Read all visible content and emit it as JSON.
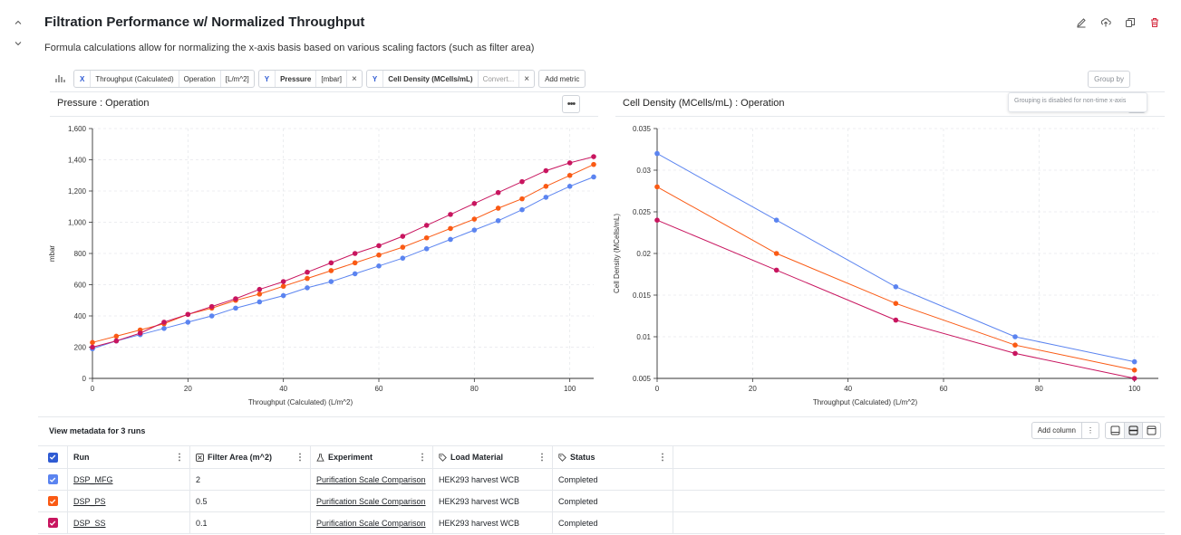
{
  "header": {
    "title": "Filtration Performance w/ Normalized Throughput",
    "subtitle": "Formula calculations allow for normalizing the x-axis basis based on various scaling factors (such as filter area)"
  },
  "metrics": {
    "x": {
      "axis": "X",
      "name": "Throughput (Calculated)",
      "scope": "Operation",
      "unit": "[L/m^2]"
    },
    "y1": {
      "axis": "Y",
      "name": "Pressure",
      "unit": "[mbar]"
    },
    "y2": {
      "axis": "Y",
      "name": "Cell Density (MCells/mL)",
      "unit_placeholder": "Convert..."
    },
    "add_label": "Add metric",
    "close_glyph": "×",
    "group_by_label": "Group by",
    "group_tooltip": "Grouping is disabled for non-time x-axis"
  },
  "colors": {
    "MFG": "#5b84f0",
    "PS": "#fa5a14",
    "SS": "#c8155f"
  },
  "charts": {
    "left": {
      "title": "Pressure : Operation"
    },
    "right": {
      "title": "Cell Density (MCells/mL) : Operation"
    }
  },
  "chart_data": [
    {
      "type": "line",
      "title": "Pressure : Operation",
      "xlabel": "Throughput (Calculated) (L/m^2)",
      "ylabel": "mbar",
      "xlim": [
        0,
        105
      ],
      "ylim": [
        0,
        1600
      ],
      "xticks": [
        0,
        20,
        40,
        60,
        80,
        100
      ],
      "yticks": [
        0,
        200,
        400,
        600,
        800,
        1000,
        1200,
        1400,
        1600
      ],
      "ytick_labels": [
        "0",
        "200",
        "400",
        "600",
        "800",
        "1,000",
        "1,200",
        "1,400",
        "1,600"
      ],
      "grid": true,
      "x": [
        0,
        5,
        10,
        15,
        20,
        25,
        30,
        35,
        40,
        45,
        50,
        55,
        60,
        65,
        70,
        75,
        80,
        85,
        90,
        95,
        100,
        105
      ],
      "series": [
        {
          "name": "DSP_MFG",
          "color": "#5b84f0",
          "values": [
            190,
            240,
            280,
            320,
            360,
            400,
            450,
            490,
            530,
            580,
            620,
            670,
            720,
            770,
            830,
            890,
            950,
            1010,
            1080,
            1160,
            1230,
            1290
          ]
        },
        {
          "name": "DSP_PS",
          "color": "#fa5a14",
          "values": [
            230,
            270,
            310,
            350,
            410,
            450,
            500,
            540,
            590,
            640,
            690,
            740,
            790,
            840,
            900,
            960,
            1020,
            1090,
            1150,
            1230,
            1300,
            1370
          ]
        },
        {
          "name": "DSP_SS",
          "color": "#c8155f",
          "values": [
            200,
            240,
            290,
            360,
            410,
            460,
            510,
            570,
            620,
            680,
            740,
            800,
            850,
            910,
            980,
            1050,
            1120,
            1190,
            1260,
            1330,
            1380,
            1420
          ]
        }
      ]
    },
    {
      "type": "line",
      "title": "Cell Density (MCells/mL) : Operation",
      "xlabel": "Throughput (Calculated) (L/m^2)",
      "ylabel": "Cell Density (MCells/mL)",
      "xlim": [
        0,
        105
      ],
      "ylim": [
        0.005,
        0.035
      ],
      "xticks": [
        0,
        20,
        40,
        60,
        80,
        100
      ],
      "yticks": [
        0.005,
        0.01,
        0.015,
        0.02,
        0.025,
        0.03,
        0.035
      ],
      "ytick_labels": [
        "0.005",
        "0.01",
        "0.015",
        "0.02",
        "0.025",
        "0.03",
        "0.035"
      ],
      "grid": true,
      "x": [
        0,
        25,
        50,
        75,
        100
      ],
      "series": [
        {
          "name": "DSP_MFG",
          "color": "#5b84f0",
          "values": [
            0.032,
            0.024,
            0.016,
            0.01,
            0.007
          ]
        },
        {
          "name": "DSP_PS",
          "color": "#fa5a14",
          "values": [
            0.028,
            0.02,
            0.014,
            0.009,
            0.006
          ]
        },
        {
          "name": "DSP_SS",
          "color": "#c8155f",
          "values": [
            0.024,
            0.018,
            0.012,
            0.008,
            0.005
          ]
        }
      ]
    }
  ],
  "metadata": {
    "title": "View metadata for 3 runs",
    "add_column_label": "Add column",
    "columns": [
      "Run",
      "Filter Area (m^2)",
      "Experiment",
      "Load Material",
      "Status"
    ],
    "rows": [
      {
        "run": "DSP_MFG",
        "filter_area": "2",
        "experiment": "Purification Scale Comparison",
        "load_material": "HEK293 harvest WCB",
        "status": "Completed",
        "color": "#5b84f0"
      },
      {
        "run": "DSP_PS",
        "filter_area": "0.5",
        "experiment": "Purification Scale Comparison",
        "load_material": "HEK293 harvest WCB",
        "status": "Completed",
        "color": "#fa5a14"
      },
      {
        "run": "DSP_SS",
        "filter_area": "0.1",
        "experiment": "Purification Scale Comparison",
        "load_material": "HEK293 harvest WCB",
        "status": "Completed",
        "color": "#c8155f"
      }
    ]
  }
}
